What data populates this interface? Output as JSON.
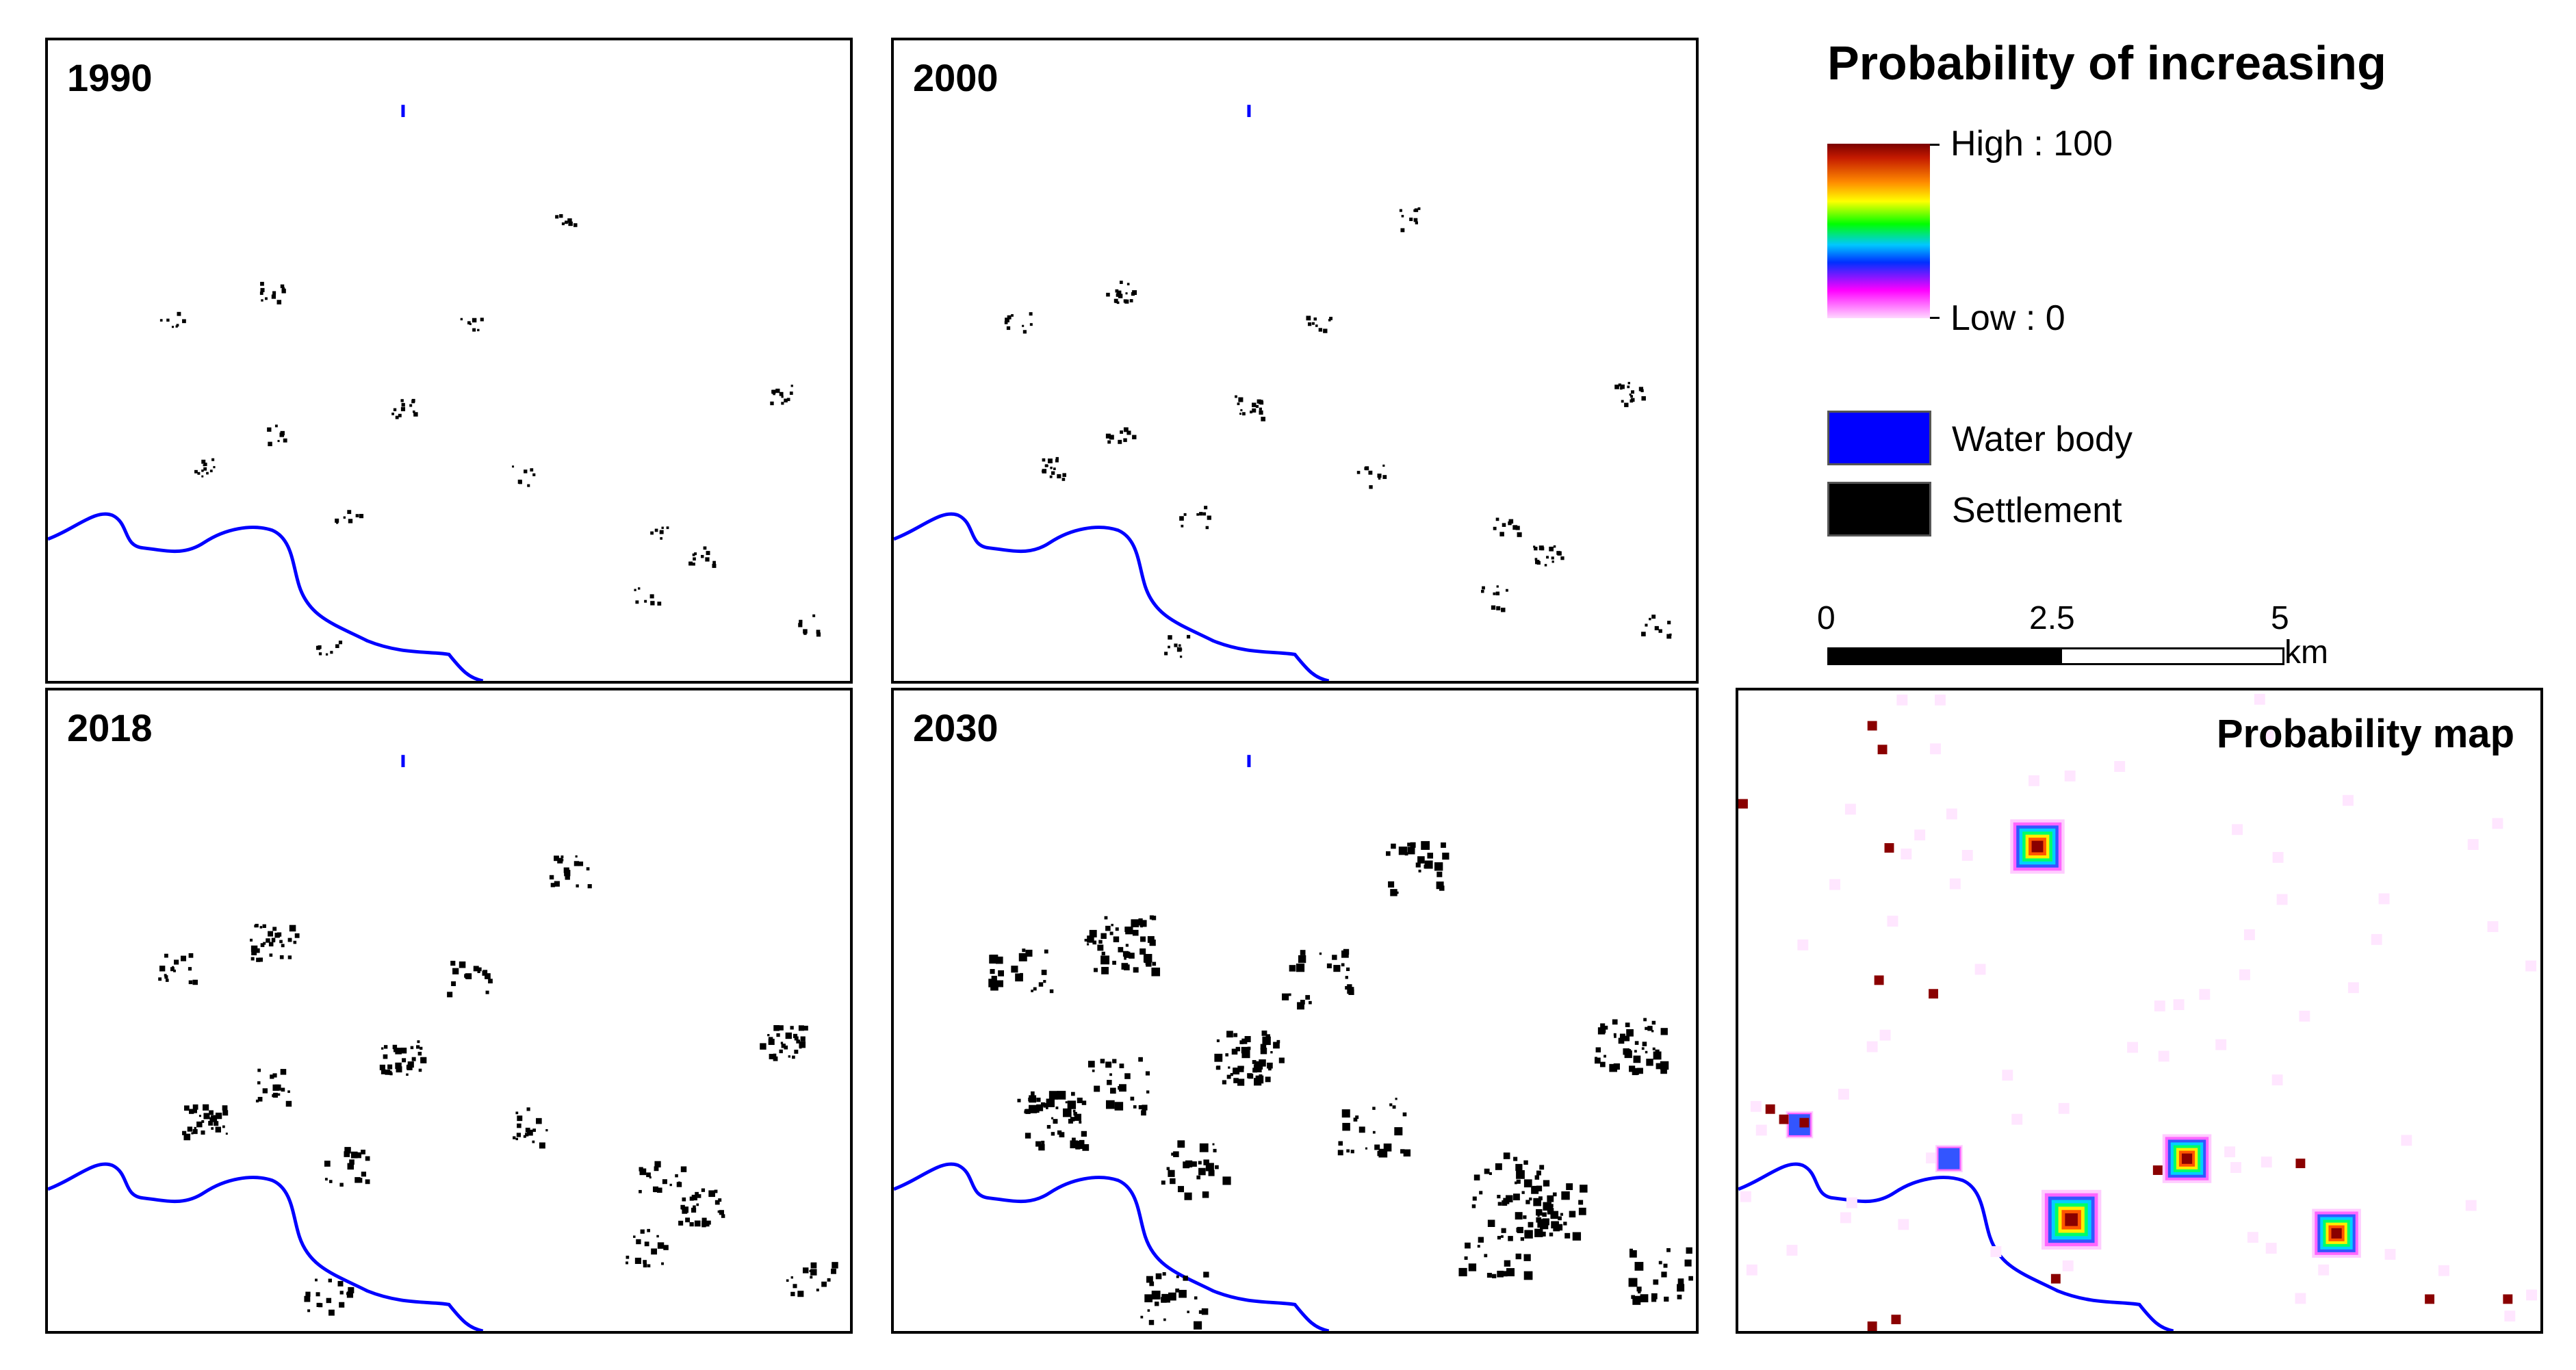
{
  "panels": [
    {
      "label": "1990"
    },
    {
      "label": "2000"
    },
    {
      "label": "2018"
    },
    {
      "label": "2030"
    }
  ],
  "probability_panel": {
    "label": "Probability map"
  },
  "legend": {
    "title": "Probability of increasing",
    "high_label": "High : 100",
    "low_label": "Low : 0",
    "water_label": "Water body",
    "settlement_label": "Settlement",
    "water_color": "#0000ff",
    "settlement_color": "#000000"
  },
  "scale": {
    "ticks": [
      "0",
      "2.5",
      "5"
    ],
    "unit": "km"
  }
}
